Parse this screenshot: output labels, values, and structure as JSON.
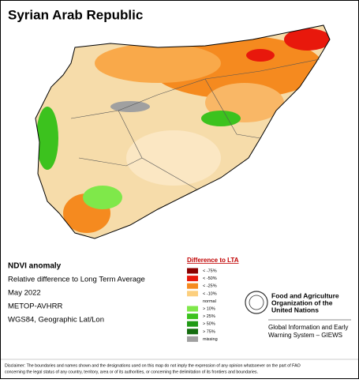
{
  "title": "Syrian Arab Republic",
  "info": {
    "heading": "NDVI anomaly",
    "lines": [
      "Relative difference to Long Term Average",
      "May 2022",
      "METOP-AVHRR",
      "WGS84, Geographic Lat/Lon"
    ]
  },
  "legend": {
    "title": "Difference to LTA",
    "items": [
      {
        "label": "< -75%",
        "color": "#8b0000"
      },
      {
        "label": "< -50%",
        "color": "#e8180c"
      },
      {
        "label": "< -25%",
        "color": "#f58a1f"
      },
      {
        "label": "< -10%",
        "color": "#fccf7e"
      },
      {
        "label": "normal"
      },
      {
        "label": "> 10%",
        "color": "#7fe84a"
      },
      {
        "label": "> 25%",
        "color": "#3cc21e"
      },
      {
        "label": "> 50%",
        "color": "#209a15"
      },
      {
        "label": "> 75%",
        "color": "#146c0e"
      },
      {
        "label": "missing",
        "color": "#a0a0a0"
      }
    ]
  },
  "logo": {
    "org": [
      "Food and Agriculture",
      "Organization of the",
      "United Nations"
    ],
    "system": [
      "Global Information and Early",
      "Warning System – GIEWS"
    ]
  },
  "disclaimer": [
    "Disclaimer: The boundaries and names shown and the designations used on this map do not imply the expression of any opinion whatsoever on the part of FAO",
    "concerning the legal status of any country, territory, area or of its authorities, or concerning the delimitation of its frontiers and boundaries."
  ]
}
